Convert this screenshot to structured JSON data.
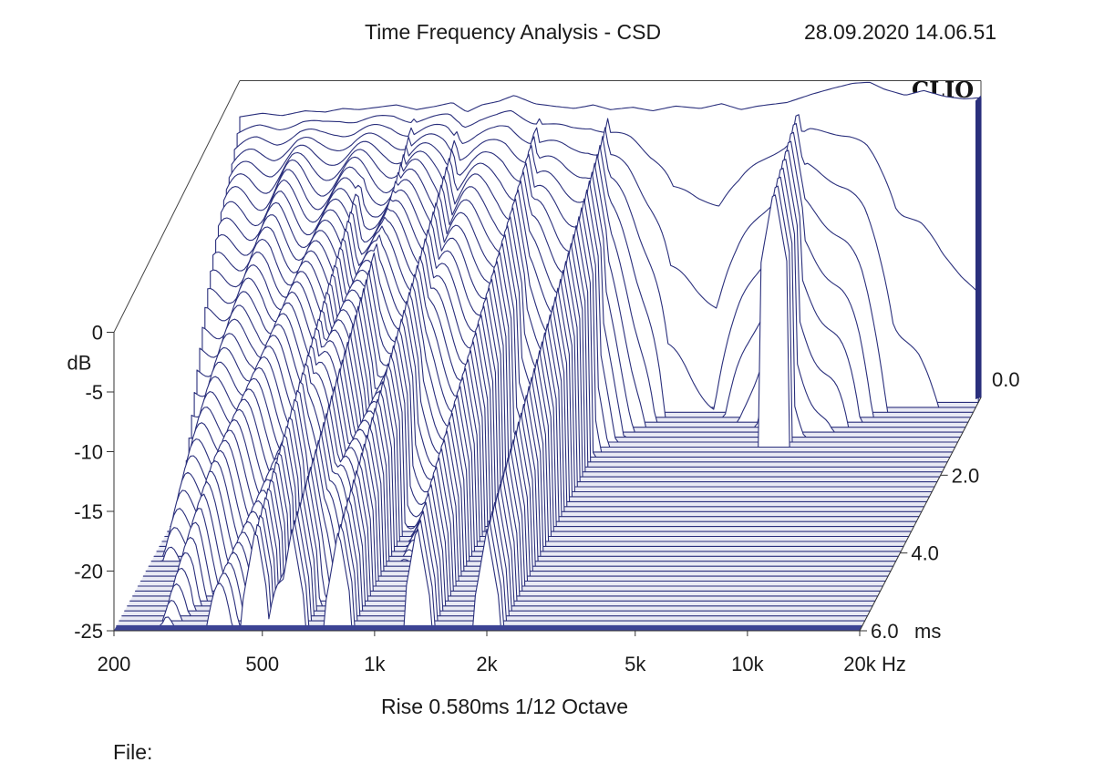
{
  "header": {
    "title": "Time Frequency Analysis - CSD",
    "timestamp": "28.09.2020 14.06.51",
    "brand": "CLIO"
  },
  "footer": {
    "settings": "Rise 0.580ms   1/12 Octave",
    "file_label": "File:"
  },
  "colors": {
    "trace": "#2a2f7c",
    "floor": "#3d4395",
    "background": "#ffffff"
  },
  "chart_data": {
    "type": "waterfall",
    "title": "Time Frequency Analysis - CSD",
    "xscale": "log",
    "xlim": [
      200,
      20000
    ],
    "x_ticks": [
      200,
      500,
      1000,
      2000,
      5000,
      10000,
      20000
    ],
    "x_tick_labels": [
      "200",
      "500",
      "1k",
      "2k",
      "5k",
      "10k",
      "20k"
    ],
    "x_unit": "Hz",
    "y_ticks": [
      0,
      -5,
      -10,
      -15,
      -20,
      -25
    ],
    "y_tick_labels": [
      "0",
      "-5",
      "-10",
      "-15",
      "-20",
      "-25"
    ],
    "ylim": [
      -25,
      0
    ],
    "ylabel": "dB",
    "z_ticks": [
      0,
      2,
      4,
      6
    ],
    "z_tick_labels": [
      "0.0",
      "2.0",
      "4.0",
      "6.0"
    ],
    "zlim": [
      0,
      6
    ],
    "z_unit": "ms",
    "slice_count": 48,
    "initial_response": {
      "freq": [
        200,
        230,
        260,
        300,
        340,
        380,
        420,
        470,
        530,
        600,
        680,
        750,
        820,
        900,
        1000,
        1100,
        1250,
        1400,
        1600,
        1800,
        2000,
        2300,
        2600,
        3000,
        3500,
        4000,
        4500,
        5000,
        6000,
        7000,
        8000,
        9000,
        10000,
        11000,
        12500,
        14000,
        16000,
        18000,
        20000
      ],
      "db": [
        -1.5,
        -1.2,
        -1.4,
        -1.0,
        -1.1,
        -0.8,
        -0.9,
        -0.7,
        -0.5,
        -0.9,
        -0.6,
        -0.3,
        -1.1,
        -0.5,
        -0.2,
        0.3,
        -0.4,
        -0.6,
        -0.8,
        -0.5,
        -0.9,
        -0.7,
        -1.0,
        -0.6,
        -0.8,
        -0.4,
        -0.9,
        -0.6,
        -0.3,
        0.4,
        0.9,
        1.3,
        1.4,
        0.8,
        0.3,
        0.7,
        0.2,
        0.0,
        0.1
      ]
    },
    "decay_ms": [
      {
        "freq": 200,
        "ms": 3.4
      },
      {
        "freq": 300,
        "ms": 6.0
      },
      {
        "freq": 450,
        "ms": 6.0
      },
      {
        "freq": 600,
        "ms": 6.0
      },
      {
        "freq": 800,
        "ms": 4.6
      },
      {
        "freq": 1000,
        "ms": 3.6
      },
      {
        "freq": 1500,
        "ms": 2.6
      },
      {
        "freq": 2000,
        "ms": 2.1
      },
      {
        "freq": 2500,
        "ms": 1.1
      },
      {
        "freq": 3000,
        "ms": 0.5
      },
      {
        "freq": 4000,
        "ms": 0.4
      },
      {
        "freq": 5000,
        "ms": 0.7
      },
      {
        "freq": 7000,
        "ms": 1.2
      },
      {
        "freq": 9000,
        "ms": 0.8
      },
      {
        "freq": 12000,
        "ms": 0.35
      },
      {
        "freq": 16000,
        "ms": 0.25
      },
      {
        "freq": 20000,
        "ms": 0.2
      }
    ],
    "resonances": [
      {
        "freq": 480,
        "ms": 6.0
      },
      {
        "freq": 600,
        "ms": 6.0
      },
      {
        "freq": 800,
        "ms": 6.0
      },
      {
        "freq": 1300,
        "ms": 6.0
      },
      {
        "freq": 2000,
        "ms": 6.0
      },
      {
        "freq": 6500,
        "ms": 1.4
      }
    ]
  }
}
